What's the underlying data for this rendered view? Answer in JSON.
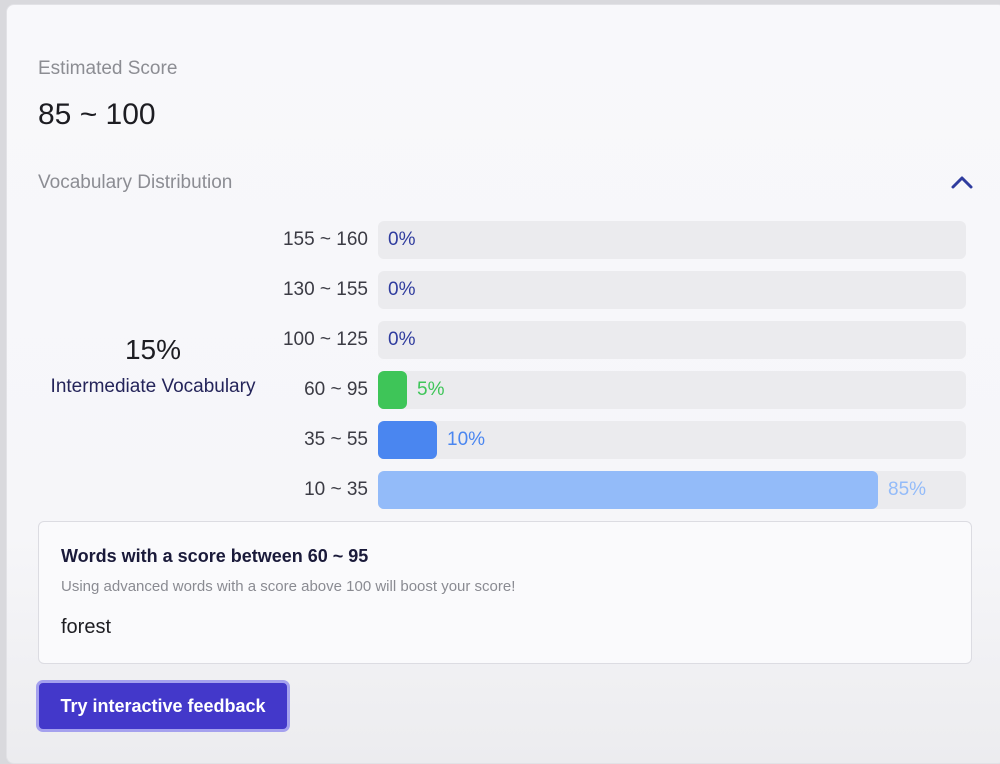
{
  "estimated_score": {
    "label": "Estimated Score",
    "value": "85 ~ 100"
  },
  "vocabulary": {
    "label": "Vocabulary Distribution",
    "collapse_icon": "chevron-up-icon",
    "summary": {
      "percent": "15%",
      "label": "Intermediate Vocabulary"
    },
    "rows": [
      {
        "range": "155 ~ 160",
        "percent_label": "0%",
        "percent": 0,
        "color": "#2f3c9e",
        "text_color": "#2f3c9e"
      },
      {
        "range": "130 ~ 155",
        "percent_label": "0%",
        "percent": 0,
        "color": "#2f3c9e",
        "text_color": "#2f3c9e"
      },
      {
        "range": "100 ~ 125",
        "percent_label": "0%",
        "percent": 0,
        "color": "#2f3c9e",
        "text_color": "#2f3c9e"
      },
      {
        "range": "60 ~ 95",
        "percent_label": "5%",
        "percent": 5,
        "color": "#3ec558",
        "text_color": "#3ec558"
      },
      {
        "range": "35 ~ 55",
        "percent_label": "10%",
        "percent": 10,
        "color": "#4a86f0",
        "text_color": "#4a86f0"
      },
      {
        "range": "10 ~ 35",
        "percent_label": "85%",
        "percent": 85,
        "color": "#93bbf9",
        "text_color": "#93bbf9"
      }
    ]
  },
  "words_panel": {
    "title": "Words with a score between 60 ~ 95",
    "hint": "Using advanced words with a score above 100 will boost your score!",
    "words": [
      "forest"
    ]
  },
  "cta": {
    "label": "Try interactive feedback"
  },
  "colors": {
    "accent": "#4338ca",
    "chevron": "#2f3c9e"
  }
}
